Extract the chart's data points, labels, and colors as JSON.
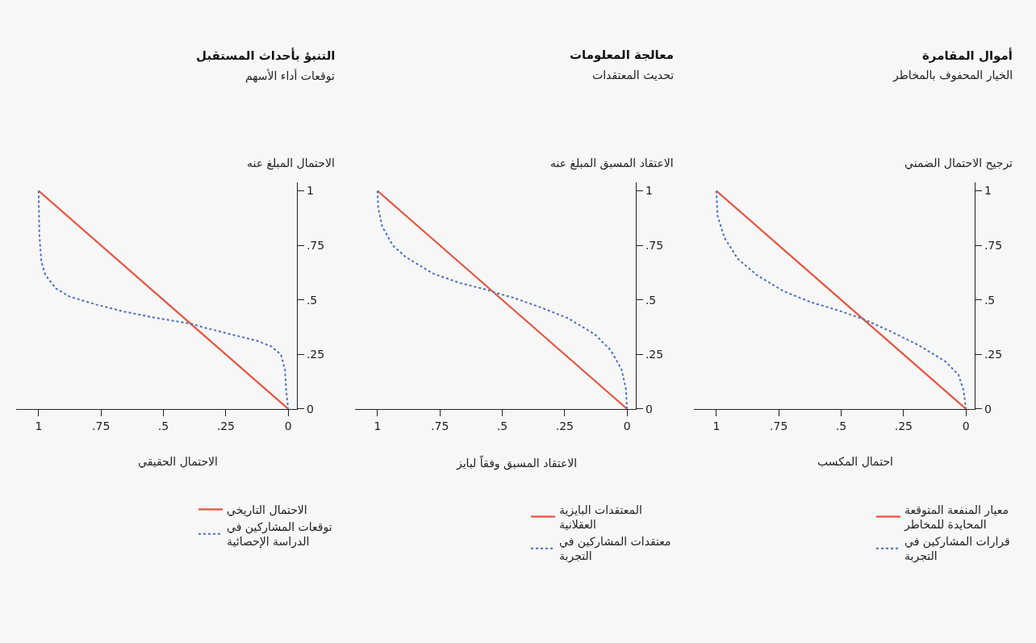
{
  "chart_data": [
    {
      "type": "line",
      "title": "أموال المقامرة",
      "subtitle": "الخيار المحفوف بالمخاطر",
      "xlabel": "احتمال المكسب",
      "ylabel": "ترجيح الاحتمال الضمني",
      "xlim": [
        1.09,
        -0.035
      ],
      "ylim": [
        0,
        1.04
      ],
      "xticks": [
        1,
        {
          "value": 0.75,
          "label": ".75"
        },
        {
          "value": 0.5,
          "label": ".5"
        },
        {
          "value": 0.25,
          "label": ".25"
        },
        0
      ],
      "yticks": [
        0,
        {
          "value": 0.25,
          "label": ".25"
        },
        {
          "value": 0.5,
          "label": ".5"
        },
        {
          "value": 0.75,
          "label": ".75"
        },
        1
      ],
      "grid": false,
      "legend": "bottom",
      "marker": "none",
      "series": [
        {
          "name": "معيار المنفعة المتوقعة المحايدة للمخاطر",
          "color": "#e8533f",
          "line_style": "solid",
          "x": [
            1,
            0
          ],
          "values": [
            1,
            0
          ]
        },
        {
          "name": "قرارات المشاركين في التجربة",
          "color": "#4a6fc1",
          "line_style": "dotted",
          "x": [
            1,
            0.995,
            0.968,
            0.914,
            0.838,
            0.731,
            0.623,
            0.515,
            0.407,
            0.299,
            0.191,
            0.084,
            0.03,
            0.009,
            0
          ],
          "values": [
            1,
            0.885,
            0.786,
            0.688,
            0.614,
            0.54,
            0.49,
            0.453,
            0.41,
            0.354,
            0.293,
            0.219,
            0.157,
            0.083,
            0
          ]
        }
      ]
    },
    {
      "type": "line",
      "title": "معالجة المعلومات",
      "subtitle": "تحديث المعتقدات",
      "xlabel": "الاعتقاد المسبق وفقاً لبايز",
      "ylabel": "الاعتقاد المسبق المبلغ عنه",
      "xlim": [
        1.09,
        -0.035
      ],
      "ylim": [
        0,
        1.04
      ],
      "xticks": [
        1,
        {
          "value": 0.75,
          "label": ".75"
        },
        {
          "value": 0.5,
          "label": ".5"
        },
        {
          "value": 0.25,
          "label": ".25"
        },
        0
      ],
      "yticks": [
        0,
        {
          "value": 0.25,
          "label": ".25"
        },
        {
          "value": 0.5,
          "label": ".5"
        },
        {
          "value": 0.75,
          "label": ".75"
        },
        1
      ],
      "grid": false,
      "legend": "bottom",
      "marker": "none",
      "series": [
        {
          "name": "المعتقدات البايزية العقلانية",
          "color": "#e8533f",
          "line_style": "solid",
          "x": [
            1,
            0
          ],
          "values": [
            1,
            0
          ]
        },
        {
          "name": "معتقدات المشاركين في التجربة",
          "color": "#4a6fc1",
          "line_style": "dotted",
          "x": [
            1,
            0.997,
            0.981,
            0.938,
            0.884,
            0.776,
            0.668,
            0.56,
            0.528,
            0.453,
            0.345,
            0.237,
            0.129,
            0.065,
            0.022,
            0.005,
            0
          ],
          "values": [
            1,
            0.922,
            0.836,
            0.749,
            0.694,
            0.62,
            0.577,
            0.546,
            0.533,
            0.509,
            0.465,
            0.416,
            0.342,
            0.268,
            0.181,
            0.095,
            0
          ]
        }
      ]
    },
    {
      "type": "line",
      "title": "التنبؤ بأحداث المستقبل",
      "subtitle": "توقعات أداء الأسهم",
      "xlabel": "الاحتمال الحقيقي",
      "ylabel": "الاحتمال المبلغ عنه",
      "xlim": [
        1.09,
        -0.035
      ],
      "ylim": [
        0,
        1.04
      ],
      "xticks": [
        1,
        {
          "value": 0.75,
          "label": ".75"
        },
        {
          "value": 0.5,
          "label": ".5"
        },
        {
          "value": 0.25,
          "label": ".25"
        },
        0
      ],
      "yticks": [
        0,
        {
          "value": 0.25,
          "label": ".25"
        },
        {
          "value": 0.5,
          "label": ".5"
        },
        {
          "value": 0.75,
          "label": ".75"
        },
        1
      ],
      "grid": false,
      "legend": "bottom",
      "marker": "none",
      "series": [
        {
          "name": "الاحتمال التاريخي",
          "color": "#e8533f",
          "line_style": "solid",
          "x": [
            1,
            0
          ],
          "values": [
            1,
            0
          ]
        },
        {
          "name": "توقعات المشاركين في الدراسة الإحصائية",
          "color": "#4a6fc1",
          "line_style": "dotted",
          "x": [
            1,
            0.997,
            0.989,
            0.973,
            0.93,
            0.876,
            0.768,
            0.66,
            0.552,
            0.444,
            0.39,
            0.337,
            0.229,
            0.121,
            0.067,
            0.029,
            0.013,
            0.008,
            0
          ],
          "values": [
            1,
            0.8,
            0.676,
            0.614,
            0.552,
            0.515,
            0.478,
            0.447,
            0.422,
            0.401,
            0.391,
            0.373,
            0.342,
            0.311,
            0.286,
            0.249,
            0.181,
            0.083,
            0
          ]
        }
      ]
    }
  ]
}
